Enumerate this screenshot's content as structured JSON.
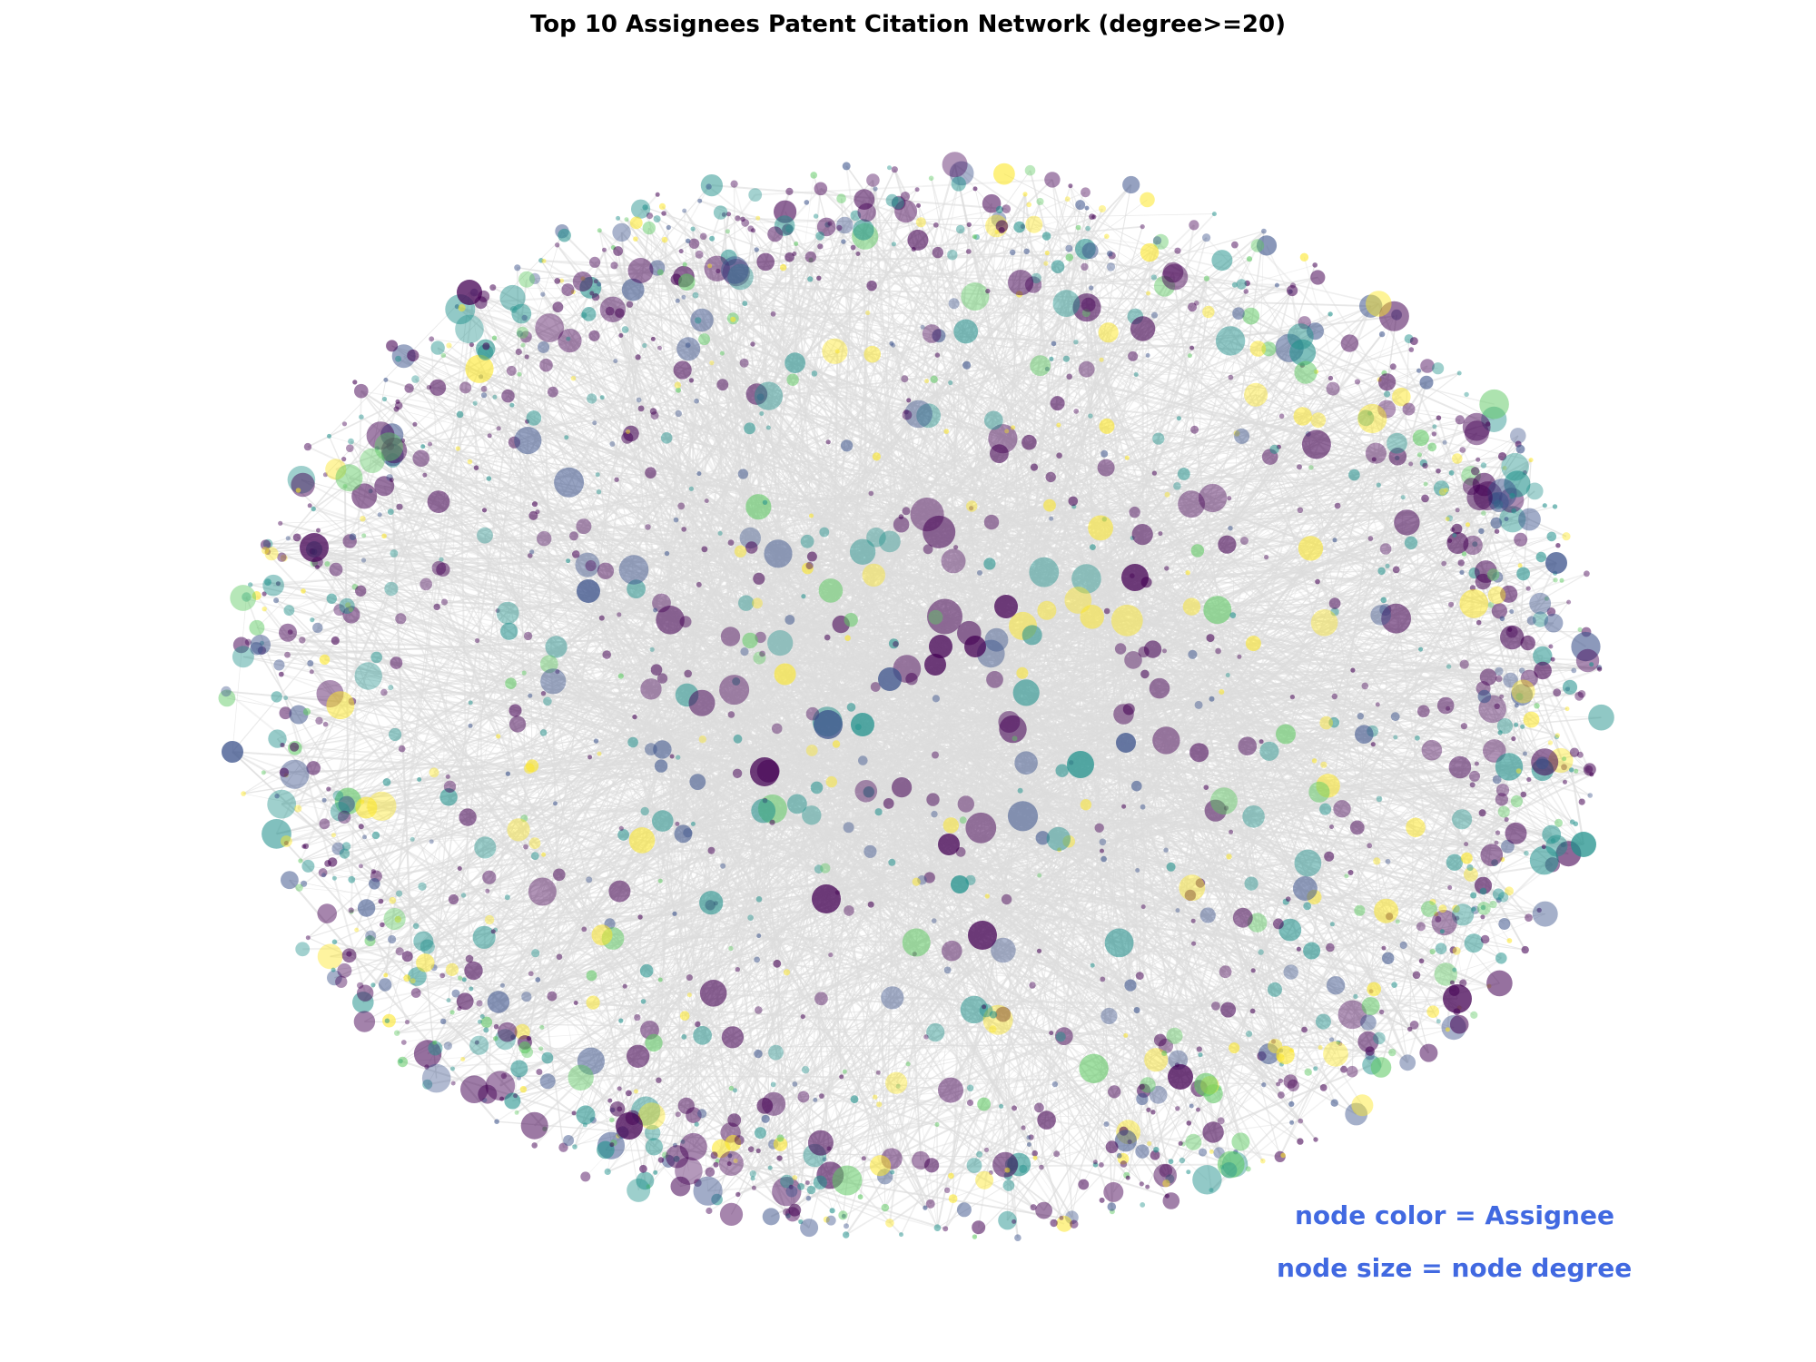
{
  "title": "Top 10 Assignees Patent Citation Network (degree>=20)",
  "annotations": {
    "color_legend": "node color = Assignee",
    "size_legend": "node size = node degree",
    "color": "#4169e1"
  },
  "network": {
    "node_colormap": [
      "#440154",
      "#3b528b",
      "#21918c",
      "#5ec962",
      "#fde725"
    ],
    "edge_color": "#dddddd",
    "background": "#ffffff"
  }
}
